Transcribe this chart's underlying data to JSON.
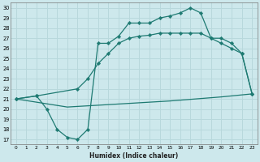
{
  "xlabel": "Humidex (Indice chaleur)",
  "xlim": [
    -0.5,
    23.5
  ],
  "ylim": [
    16.5,
    30.5
  ],
  "xticks": [
    0,
    1,
    2,
    3,
    4,
    5,
    6,
    7,
    8,
    9,
    10,
    11,
    12,
    13,
    14,
    15,
    16,
    17,
    18,
    19,
    20,
    21,
    22,
    23
  ],
  "yticks": [
    17,
    18,
    19,
    20,
    21,
    22,
    23,
    24,
    25,
    26,
    27,
    28,
    29,
    30
  ],
  "bg_color": "#cde8ec",
  "grid_color": "#b8d8dc",
  "line_color": "#1e7a72",
  "curve_upper_x": [
    0,
    2,
    3,
    4,
    5,
    6,
    7,
    8,
    9,
    10,
    11,
    12,
    13,
    14,
    15,
    16,
    17,
    18,
    19,
    20,
    21,
    22,
    23
  ],
  "curve_upper_y": [
    21.0,
    21.3,
    20.0,
    18.0,
    17.2,
    17.0,
    18.0,
    26.5,
    26.5,
    27.2,
    28.5,
    28.5,
    28.5,
    29.0,
    29.2,
    29.5,
    30.0,
    29.5,
    27.0,
    27.0,
    26.5,
    25.5,
    21.5
  ],
  "curve_mid_x": [
    0,
    2,
    6,
    7,
    8,
    9,
    10,
    11,
    12,
    13,
    14,
    15,
    16,
    17,
    18,
    19,
    20,
    21,
    22,
    23
  ],
  "curve_mid_y": [
    21.0,
    21.3,
    22.0,
    23.0,
    24.5,
    25.5,
    26.5,
    27.0,
    27.2,
    27.3,
    27.5,
    27.5,
    27.5,
    27.5,
    27.5,
    27.0,
    26.5,
    26.0,
    25.5,
    21.5
  ],
  "curve_straight_x": [
    0,
    5,
    10,
    15,
    20,
    23
  ],
  "curve_straight_y": [
    21.0,
    20.2,
    20.5,
    20.8,
    21.2,
    21.5
  ]
}
